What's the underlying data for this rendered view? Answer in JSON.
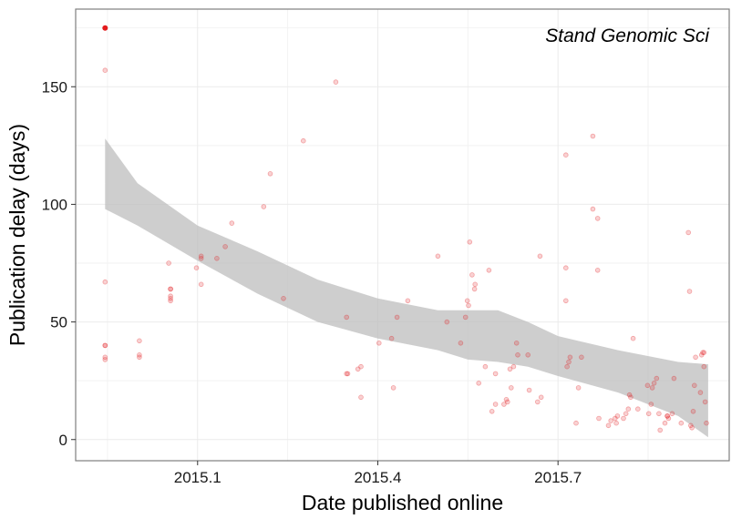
{
  "chart_data": {
    "type": "scatter",
    "title": "",
    "annotation": "Stand Genomic Sci",
    "xlabel": "Date published online",
    "ylabel": "Publication delay (days)",
    "x_ticks": [
      2015.1,
      2015.4,
      2015.7
    ],
    "x_tick_labels": [
      "2015.1",
      "2015.4",
      "2015.7"
    ],
    "y_ticks": [
      0,
      50,
      100,
      150
    ],
    "y_tick_labels": [
      "0",
      "50",
      "100",
      "150"
    ],
    "xlim": [
      2014.897,
      2015.985
    ],
    "ylim": [
      -9,
      183
    ],
    "grid": true,
    "point_color": "#e31a1c",
    "ribbon_color": "#bdbdbd",
    "points": [
      [
        2014.946,
        175
      ],
      [
        2014.946,
        157
      ],
      [
        2014.946,
        67
      ],
      [
        2014.946,
        40
      ],
      [
        2014.946,
        40
      ],
      [
        2014.946,
        35
      ],
      [
        2014.946,
        34
      ],
      [
        2015.003,
        42
      ],
      [
        2015.003,
        36
      ],
      [
        2015.003,
        35
      ],
      [
        2015.052,
        75
      ],
      [
        2015.055,
        64
      ],
      [
        2015.055,
        64
      ],
      [
        2015.055,
        61
      ],
      [
        2015.055,
        60
      ],
      [
        2015.055,
        59
      ],
      [
        2015.098,
        73
      ],
      [
        2015.106,
        78
      ],
      [
        2015.106,
        77
      ],
      [
        2015.106,
        66
      ],
      [
        2015.132,
        77
      ],
      [
        2015.146,
        82
      ],
      [
        2015.157,
        92
      ],
      [
        2015.21,
        99
      ],
      [
        2015.221,
        113
      ],
      [
        2015.243,
        60
      ],
      [
        2015.276,
        127
      ],
      [
        2015.33,
        152
      ],
      [
        2015.348,
        52
      ],
      [
        2015.348,
        28
      ],
      [
        2015.35,
        28
      ],
      [
        2015.367,
        30
      ],
      [
        2015.372,
        31
      ],
      [
        2015.372,
        18
      ],
      [
        2015.402,
        41
      ],
      [
        2015.423,
        43
      ],
      [
        2015.426,
        22
      ],
      [
        2015.432,
        52
      ],
      [
        2015.45,
        59
      ],
      [
        2015.5,
        78
      ],
      [
        2015.515,
        50
      ],
      [
        2015.538,
        41
      ],
      [
        2015.546,
        52
      ],
      [
        2015.549,
        59
      ],
      [
        2015.551,
        57
      ],
      [
        2015.553,
        84
      ],
      [
        2015.557,
        70
      ],
      [
        2015.561,
        64
      ],
      [
        2015.562,
        66
      ],
      [
        2015.568,
        24
      ],
      [
        2015.579,
        31
      ],
      [
        2015.585,
        72
      ],
      [
        2015.59,
        12
      ],
      [
        2015.596,
        15
      ],
      [
        2015.596,
        28
      ],
      [
        2015.61,
        15
      ],
      [
        2015.614,
        17
      ],
      [
        2015.616,
        16
      ],
      [
        2015.62,
        30
      ],
      [
        2015.622,
        22
      ],
      [
        2015.626,
        31
      ],
      [
        2015.631,
        41
      ],
      [
        2015.633,
        36
      ],
      [
        2015.65,
        36
      ],
      [
        2015.652,
        21
      ],
      [
        2015.666,
        16
      ],
      [
        2015.67,
        78
      ],
      [
        2015.672,
        18
      ],
      [
        2015.713,
        121
      ],
      [
        2015.713,
        73
      ],
      [
        2015.713,
        59
      ],
      [
        2015.715,
        31
      ],
      [
        2015.718,
        33
      ],
      [
        2015.72,
        35
      ],
      [
        2015.73,
        7
      ],
      [
        2015.734,
        22
      ],
      [
        2015.739,
        35
      ],
      [
        2015.758,
        129
      ],
      [
        2015.758,
        98
      ],
      [
        2015.766,
        94
      ],
      [
        2015.766,
        72
      ],
      [
        2015.768,
        9
      ],
      [
        2015.784,
        6
      ],
      [
        2015.788,
        8
      ],
      [
        2015.795,
        9
      ],
      [
        2015.797,
        7
      ],
      [
        2015.799,
        10
      ],
      [
        2015.809,
        9
      ],
      [
        2015.813,
        11
      ],
      [
        2015.817,
        13
      ],
      [
        2015.819,
        19
      ],
      [
        2015.821,
        18
      ],
      [
        2015.825,
        43
      ],
      [
        2015.833,
        13
      ],
      [
        2015.849,
        23
      ],
      [
        2015.851,
        11
      ],
      [
        2015.855,
        15
      ],
      [
        2015.857,
        22
      ],
      [
        2015.86,
        24
      ],
      [
        2015.864,
        26
      ],
      [
        2015.868,
        11
      ],
      [
        2015.87,
        4
      ],
      [
        2015.878,
        7
      ],
      [
        2015.882,
        10
      ],
      [
        2015.882,
        10
      ],
      [
        2015.884,
        9
      ],
      [
        2015.89,
        11
      ],
      [
        2015.893,
        26
      ],
      [
        2015.905,
        7
      ],
      [
        2015.917,
        88
      ],
      [
        2015.919,
        63
      ],
      [
        2015.921,
        6
      ],
      [
        2015.923,
        5
      ],
      [
        2015.925,
        12
      ],
      [
        2015.927,
        23
      ],
      [
        2015.929,
        35
      ],
      [
        2015.937,
        20
      ],
      [
        2015.939,
        36
      ],
      [
        2015.941,
        37
      ],
      [
        2015.943,
        37
      ],
      [
        2015.943,
        31
      ],
      [
        2015.945,
        16
      ],
      [
        2015.947,
        7
      ]
    ],
    "highlight_point": [
      2014.946,
      175
    ],
    "ribbon": [
      {
        "x": 2014.946,
        "lower": 98,
        "upper": 128
      },
      {
        "x": 2015.0,
        "lower": 91,
        "upper": 109
      },
      {
        "x": 2015.1,
        "lower": 76,
        "upper": 91
      },
      {
        "x": 2015.2,
        "lower": 62,
        "upper": 80
      },
      {
        "x": 2015.3,
        "lower": 50,
        "upper": 68
      },
      {
        "x": 2015.4,
        "lower": 43,
        "upper": 60
      },
      {
        "x": 2015.5,
        "lower": 38,
        "upper": 55
      },
      {
        "x": 2015.55,
        "lower": 34,
        "upper": 55
      },
      {
        "x": 2015.6,
        "lower": 33,
        "upper": 55
      },
      {
        "x": 2015.65,
        "lower": 31,
        "upper": 50
      },
      {
        "x": 2015.7,
        "lower": 27,
        "upper": 44
      },
      {
        "x": 2015.8,
        "lower": 20,
        "upper": 38
      },
      {
        "x": 2015.9,
        "lower": 10,
        "upper": 33
      },
      {
        "x": 2015.95,
        "lower": 1,
        "upper": 32
      }
    ]
  }
}
